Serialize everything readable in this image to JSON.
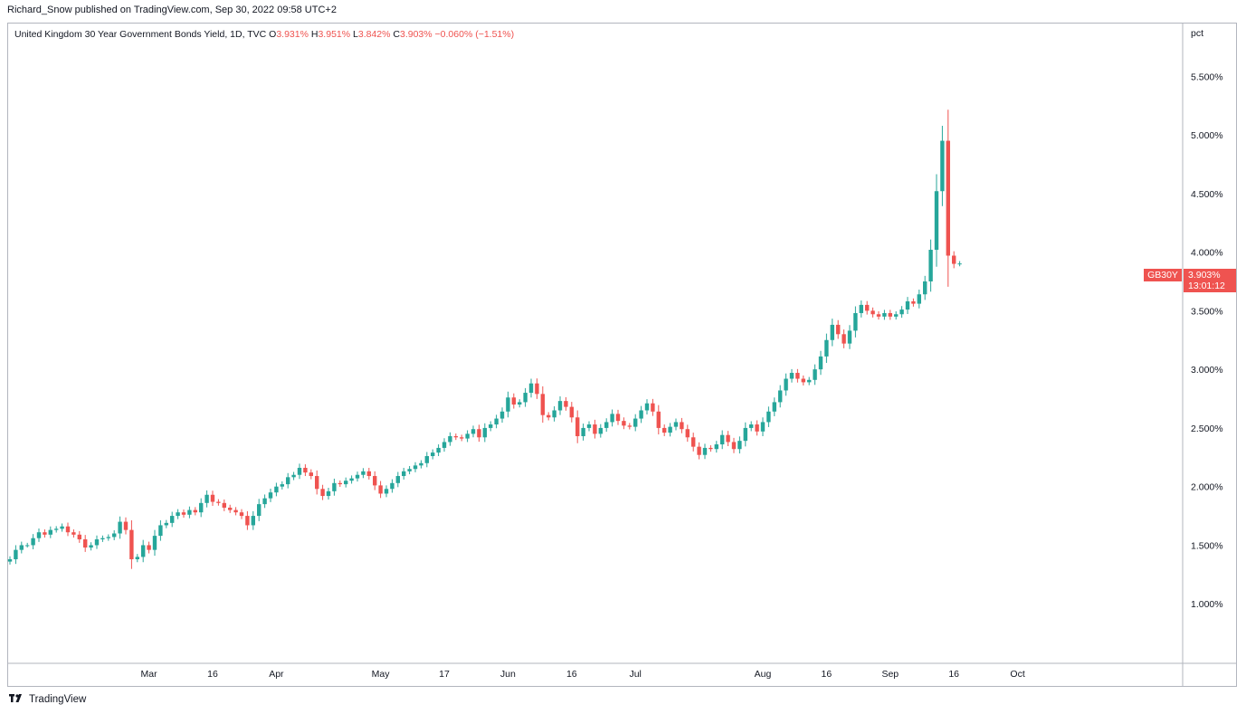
{
  "header": {
    "published": "Richard_Snow published on TradingView.com, Sep 30, 2022 09:58 UTC+2"
  },
  "legend": {
    "title": "United Kingdom 30 Year Government Bonds Yield, 1D, TVC",
    "o_label": "O",
    "o_value": "3.931%",
    "h_label": "H",
    "h_value": "3.951%",
    "l_label": "L",
    "l_value": "3.842%",
    "c_label": "C",
    "c_value": "3.903%",
    "change": "−0.060% (−1.51%)"
  },
  "price_axis": {
    "unit": "pct"
  },
  "current_price": {
    "symbol": "GB30Y",
    "value": "3.903%",
    "countdown": "13:01:12"
  },
  "footer": {
    "brand": "TradingView",
    "logo_icon": "tradingview-logo-icon"
  },
  "colors": {
    "up": "#26a69a",
    "down": "#ef5350",
    "axis_border": "#b2b5be"
  },
  "chart_data": {
    "type": "candlestick",
    "y_unit": "pct",
    "ylim": [
      0.5,
      5.95
    ],
    "y_ticks": [
      {
        "value": 1.0,
        "label": "1.000%"
      },
      {
        "value": 1.5,
        "label": "1.500%"
      },
      {
        "value": 2.0,
        "label": "2.000%"
      },
      {
        "value": 2.5,
        "label": "2.500%"
      },
      {
        "value": 3.0,
        "label": "3.000%"
      },
      {
        "value": 3.5,
        "label": "3.500%"
      },
      {
        "value": 4.0,
        "label": "4.000%"
      },
      {
        "value": 4.5,
        "label": "4.500%"
      },
      {
        "value": 5.0,
        "label": "5.000%"
      },
      {
        "value": 5.5,
        "label": "5.500%"
      }
    ],
    "x_ticks": [
      {
        "index": 24,
        "label": "Mar"
      },
      {
        "index": 35,
        "label": "16"
      },
      {
        "index": 46,
        "label": "Apr"
      },
      {
        "index": 64,
        "label": "May"
      },
      {
        "index": 75,
        "label": "17"
      },
      {
        "index": 86,
        "label": "Jun"
      },
      {
        "index": 97,
        "label": "16"
      },
      {
        "index": 108,
        "label": "Jul"
      },
      {
        "index": 130,
        "label": "Aug"
      },
      {
        "index": 141,
        "label": "16"
      },
      {
        "index": 152,
        "label": "Sep"
      },
      {
        "index": 163,
        "label": "16"
      },
      {
        "index": 174,
        "label": "Oct"
      }
    ],
    "closes": [
      1.38,
      1.46,
      1.5,
      1.5,
      1.56,
      1.61,
      1.59,
      1.63,
      1.64,
      1.66,
      1.61,
      1.59,
      1.55,
      1.48,
      1.5,
      1.55,
      1.56,
      1.57,
      1.6,
      1.7,
      1.63,
      1.38,
      1.4,
      1.5,
      1.46,
      1.58,
      1.67,
      1.69,
      1.75,
      1.78,
      1.76,
      1.8,
      1.78,
      1.86,
      1.93,
      1.87,
      1.86,
      1.82,
      1.8,
      1.78,
      1.75,
      1.67,
      1.75,
      1.85,
      1.9,
      1.95,
      2.0,
      2.02,
      2.08,
      2.1,
      2.16,
      2.12,
      2.09,
      1.98,
      1.92,
      1.96,
      2.03,
      2.02,
      2.05,
      2.07,
      2.1,
      2.13,
      2.09,
      2.01,
      1.94,
      1.98,
      2.03,
      2.09,
      2.13,
      2.15,
      2.18,
      2.2,
      2.26,
      2.29,
      2.33,
      2.38,
      2.43,
      2.42,
      2.41,
      2.45,
      2.49,
      2.42,
      2.5,
      2.53,
      2.58,
      2.64,
      2.76,
      2.7,
      2.72,
      2.8,
      2.88,
      2.79,
      2.61,
      2.59,
      2.65,
      2.73,
      2.68,
      2.59,
      2.43,
      2.5,
      2.53,
      2.45,
      2.5,
      2.55,
      2.62,
      2.56,
      2.52,
      2.51,
      2.58,
      2.65,
      2.71,
      2.64,
      2.5,
      2.46,
      2.51,
      2.55,
      2.49,
      2.42,
      2.34,
      2.27,
      2.33,
      2.32,
      2.36,
      2.44,
      2.38,
      2.32,
      2.39,
      2.5,
      2.53,
      2.47,
      2.55,
      2.64,
      2.72,
      2.82,
      2.92,
      2.97,
      2.92,
      2.89,
      2.91,
      3.0,
      3.11,
      3.25,
      3.38,
      3.3,
      3.22,
      3.33,
      3.48,
      3.55,
      3.5,
      3.47,
      3.45,
      3.48,
      3.45,
      3.47,
      3.51,
      3.58,
      3.56,
      3.64,
      3.75,
      4.02,
      4.52,
      4.95,
      3.97,
      3.9,
      3.903
    ],
    "ohlc": []
  }
}
